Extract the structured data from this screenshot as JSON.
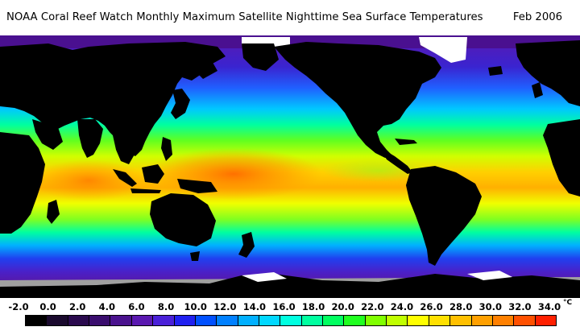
{
  "title": "NOAA Coral Reef Watch Monthly Maximum Satellite Nighttime Sea Surface Temperatures",
  "date": "Feb 2006",
  "legend": {
    "ticks": [
      "-2.0",
      "0.0",
      "2.0",
      "4.0",
      "6.0",
      "8.0",
      "10.0",
      "12.0",
      "14.0",
      "16.0",
      "18.0",
      "20.0",
      "22.0",
      "24.0",
      "26.0",
      "28.0",
      "30.0",
      "32.0",
      "34.0"
    ],
    "unit": "°C",
    "colors": [
      "#000000",
      "#1a0a2e",
      "#2a0a4e",
      "#3a0d6e",
      "#4a128e",
      "#5a18b0",
      "#4a20d8",
      "#2020f0",
      "#0050ff",
      "#0080ff",
      "#00b0ff",
      "#00d8ff",
      "#00ffe0",
      "#00ffa0",
      "#00ff60",
      "#20ff20",
      "#80ff00",
      "#c0ff00",
      "#ffff00",
      "#ffe000",
      "#ffc000",
      "#ffa000",
      "#ff8000",
      "#ff5000",
      "#ff2000"
    ]
  },
  "map": {
    "land_color": "#000000",
    "ice_color": "#ffffff",
    "sea_ice_color": "#a0a0a0"
  }
}
